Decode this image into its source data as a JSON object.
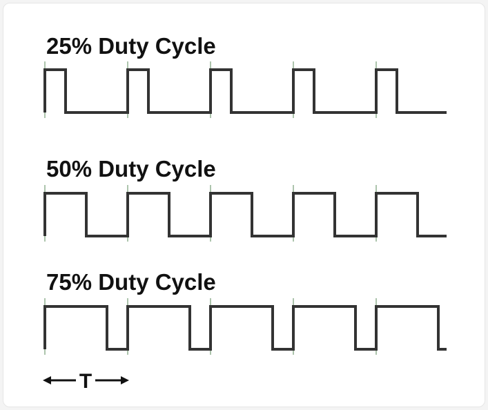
{
  "waveforms": [
    {
      "title": "25% Duty Cycle",
      "duty": 0.25
    },
    {
      "title": "50% Duty Cycle",
      "duty": 0.5
    },
    {
      "title": "75% Duty Cycle",
      "duty": 0.75
    }
  ],
  "cycles": 5,
  "period_label": "T",
  "colors": {
    "wave": "#333333",
    "marker": "#5a8a5a",
    "text": "#111111"
  }
}
